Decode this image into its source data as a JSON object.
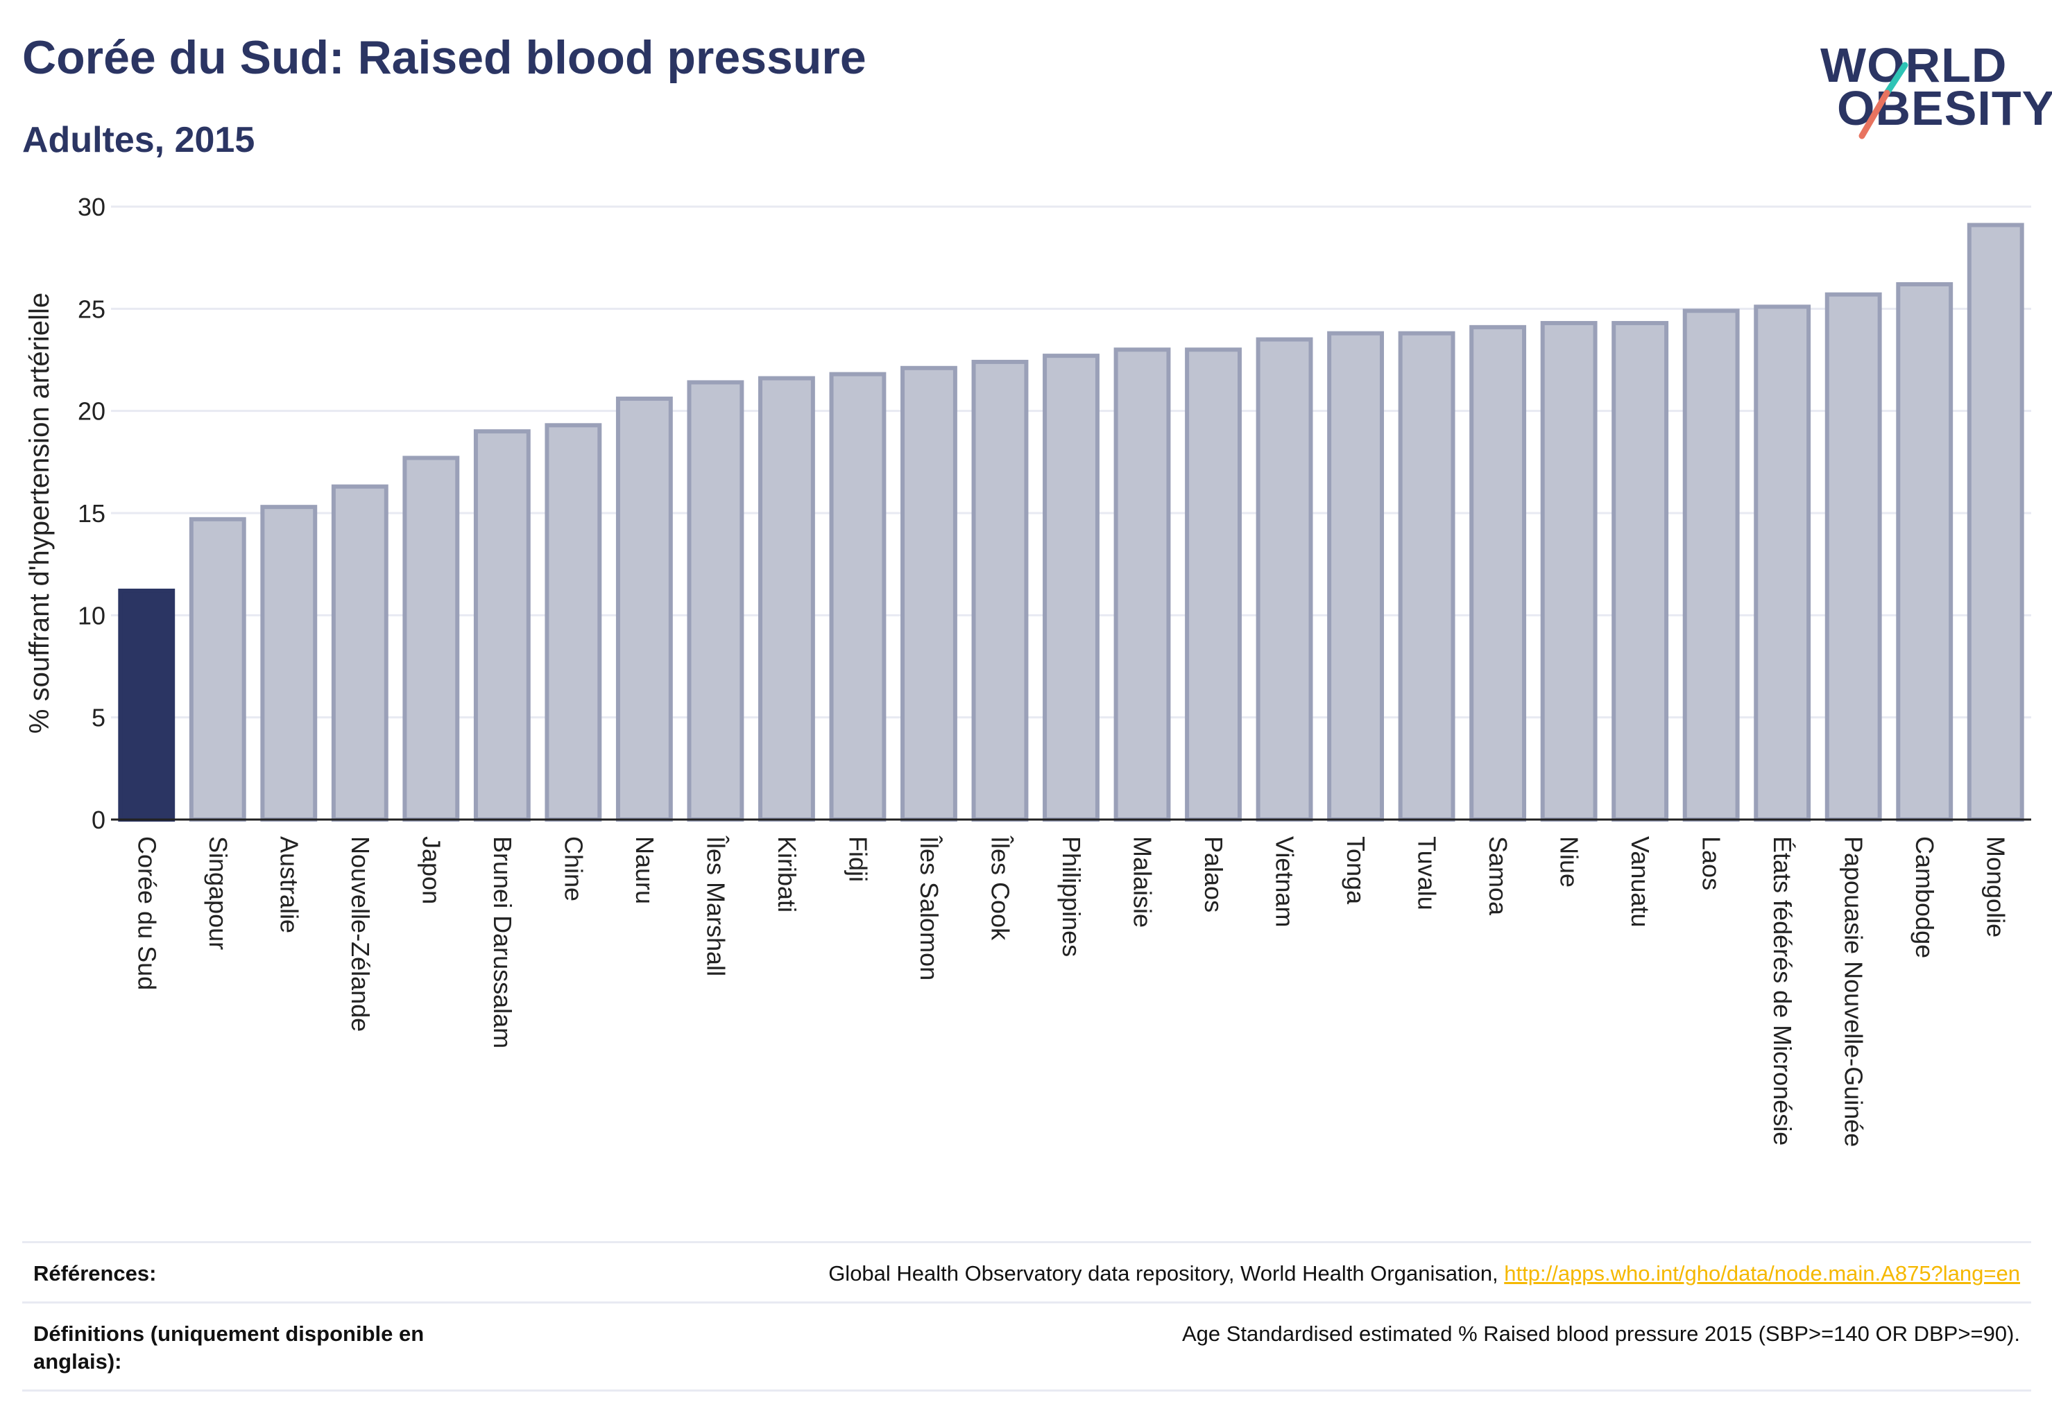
{
  "header": {
    "title": "Corée du Sud: Raised blood pressure",
    "subtitle": "Adultes, 2015"
  },
  "logo": {
    "line1": "WORLD",
    "line2": "OBESITY"
  },
  "colors": {
    "highlight": "#2b3563",
    "bar_fill": "#bfc3d1",
    "bar_stroke": "#9aa0b8",
    "grid": "#e8eaf2",
    "axis": "#222222",
    "logo_slash_teal": "#2ec4b6",
    "logo_slash_coral": "#e8735f",
    "link": "#f5b800"
  },
  "chart_data": {
    "type": "bar",
    "title": "Corée du Sud: Raised blood pressure",
    "subtitle": "Adultes, 2015",
    "xlabel": "",
    "ylabel": "% souffrant d'hypertension artérielle",
    "ylim": [
      0,
      30
    ],
    "yticks": [
      0,
      5,
      10,
      15,
      20,
      25,
      30
    ],
    "grid": true,
    "highlight_category": "Corée du Sud",
    "categories": [
      "Corée du Sud",
      "Singapour",
      "Australie",
      "Nouvelle-Zélande",
      "Japon",
      "Brunei Darussalam",
      "Chine",
      "Nauru",
      "Îles Marshall",
      "Kiribati",
      "Fidji",
      "Îles Salomon",
      "Îles Cook",
      "Philippines",
      "Malaisie",
      "Palaos",
      "Vietnam",
      "Tonga",
      "Tuvalu",
      "Samoa",
      "Niue",
      "Vanuatu",
      "Laos",
      "États fédérés de Micronésie",
      "Papouasie Nouvelle-Guinée",
      "Cambodge",
      "Mongolie"
    ],
    "values": [
      11.2,
      14.7,
      15.3,
      16.3,
      17.7,
      19.0,
      19.3,
      20.6,
      21.4,
      21.6,
      21.8,
      22.1,
      22.4,
      22.7,
      23.0,
      23.0,
      23.5,
      23.8,
      23.8,
      24.1,
      24.3,
      24.3,
      24.9,
      25.1,
      25.7,
      26.2,
      29.1
    ]
  },
  "footer": {
    "references_label": "Références:",
    "references_text": "Global Health Observatory data repository, World Health Organisation, ",
    "references_link": "http://apps.who.int/gho/data/node.main.A875?lang=en",
    "definitions_label": "Définitions (uniquement disponible en anglais):",
    "definitions_text": "Age Standardised estimated % Raised blood pressure 2015 (SBP>=140 OR DBP>=90)."
  }
}
